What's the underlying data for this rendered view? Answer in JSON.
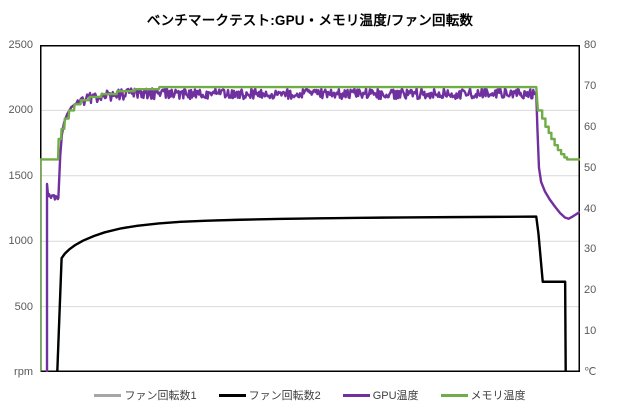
{
  "title": "ベンチマークテスト:GPU・メモリ温度/ファン回転数",
  "colors": {
    "fan1": "#a6a6a6",
    "fan2": "#000000",
    "gpu_temp": "#7030a0",
    "mem_temp": "#70ad47",
    "grid": "#d9d9d9",
    "border": "#000000",
    "axis_text": "#595959",
    "legend_text": "#404040"
  },
  "legend": {
    "items": [
      {
        "id": "fan1",
        "label": "ファン回転数1",
        "color": "#a6a6a6"
      },
      {
        "id": "fan2",
        "label": "ファン回転数2",
        "color": "#000000"
      },
      {
        "id": "gpu-temp",
        "label": "GPU温度",
        "color": "#7030a0"
      },
      {
        "id": "mem-temp",
        "label": "メモリ温度",
        "color": "#70ad47"
      }
    ]
  },
  "chart_data": {
    "type": "line",
    "title": "ベンチマークテスト:GPU・メモリ温度/ファン回転数",
    "x_axis": {
      "label": "",
      "min": 0,
      "max": 100,
      "ticks": [],
      "note_units": "percent of run, no tick labels shown"
    },
    "left_axis": {
      "unit": "rpm",
      "min": 0,
      "max": 2500,
      "ticks": [
        2500,
        2000,
        1500,
        1000,
        500
      ]
    },
    "right_axis": {
      "unit": "℃",
      "min": 0,
      "max": 80,
      "ticks": [
        80,
        70,
        60,
        50,
        40,
        30,
        20,
        10
      ]
    },
    "grid": "horizontal-left-axis-only",
    "legend_position": "bottom",
    "series": [
      {
        "name": "ファン回転数1",
        "id": "fan1",
        "axis": "rpm",
        "color": "#a6a6a6",
        "width": 2.0,
        "note": "identical to ファン回転数2, hidden beneath it",
        "points": [
          [
            0,
            0
          ],
          [
            3.2,
            0
          ],
          [
            4.0,
            870
          ],
          [
            4.6,
            905
          ],
          [
            5.5,
            940
          ],
          [
            6.5,
            970
          ],
          [
            8,
            1005
          ],
          [
            10,
            1040
          ],
          [
            12,
            1068
          ],
          [
            15,
            1098
          ],
          [
            18,
            1118
          ],
          [
            22,
            1136
          ],
          [
            26,
            1148
          ],
          [
            31,
            1157
          ],
          [
            37,
            1164
          ],
          [
            44,
            1170
          ],
          [
            52,
            1175
          ],
          [
            60,
            1179
          ],
          [
            68,
            1182
          ],
          [
            76,
            1184
          ],
          [
            84,
            1186
          ],
          [
            91.9,
            1188
          ],
          [
            92.3,
            1060
          ],
          [
            93.1,
            690
          ],
          [
            97.25,
            690
          ],
          [
            97.35,
            0
          ],
          [
            100,
            0
          ]
        ]
      },
      {
        "name": "ファン回転数2",
        "id": "fan2",
        "axis": "rpm",
        "color": "#000000",
        "width": 2.4,
        "points": [
          [
            0,
            0
          ],
          [
            3.2,
            0
          ],
          [
            4.0,
            870
          ],
          [
            4.6,
            905
          ],
          [
            5.5,
            940
          ],
          [
            6.5,
            970
          ],
          [
            8,
            1005
          ],
          [
            10,
            1040
          ],
          [
            12,
            1068
          ],
          [
            15,
            1098
          ],
          [
            18,
            1118
          ],
          [
            22,
            1136
          ],
          [
            26,
            1148
          ],
          [
            31,
            1157
          ],
          [
            37,
            1164
          ],
          [
            44,
            1170
          ],
          [
            52,
            1175
          ],
          [
            60,
            1179
          ],
          [
            68,
            1182
          ],
          [
            76,
            1184
          ],
          [
            84,
            1186
          ],
          [
            91.9,
            1188
          ],
          [
            92.3,
            1060
          ],
          [
            93.1,
            690
          ],
          [
            97.25,
            690
          ],
          [
            97.35,
            0
          ],
          [
            100,
            0
          ]
        ]
      },
      {
        "name": "GPU温度",
        "id": "gpu-temp",
        "axis": "temp",
        "color": "#7030a0",
        "width": 2.4,
        "points": [
          [
            1.3,
            0
          ],
          [
            1.3,
            46
          ],
          [
            1.5,
            43
          ],
          [
            3.4,
            42.6
          ],
          [
            3.55,
            47
          ],
          [
            3.75,
            53
          ],
          [
            4.05,
            58
          ],
          [
            4.45,
            61
          ],
          [
            5.0,
            63
          ],
          [
            5.8,
            64.8
          ],
          [
            6.8,
            65.8
          ],
          [
            8.0,
            66.5
          ],
          [
            9.5,
            67.1
          ],
          [
            11.5,
            67.5
          ],
          [
            14,
            67.8
          ],
          [
            17,
            68.1
          ],
          [
            91.9,
            68.1
          ],
          [
            92.1,
            60
          ],
          [
            92.4,
            50
          ],
          [
            92.8,
            46.5
          ],
          [
            93.5,
            44.2
          ],
          [
            94.4,
            42.2
          ],
          [
            95.4,
            40.4
          ],
          [
            96.3,
            38.9
          ],
          [
            97.2,
            37.8
          ],
          [
            97.9,
            37.5
          ],
          [
            98.6,
            38.0
          ],
          [
            99.3,
            38.6
          ],
          [
            100,
            39.2
          ]
        ],
        "noise": [
          {
            "from": 1.5,
            "to": 3.4,
            "amp": 0.7,
            "step": 0.18
          },
          {
            "from": 6.8,
            "to": 91.9,
            "amp": 1.3,
            "step": 0.18
          }
        ]
      },
      {
        "name": "メモリ温度",
        "id": "mem-temp",
        "axis": "temp",
        "color": "#70ad47",
        "width": 2.4,
        "points": [
          [
            0,
            0
          ],
          [
            0,
            52
          ],
          [
            3.35,
            52
          ],
          [
            3.45,
            57
          ],
          [
            3.9,
            57
          ],
          [
            4.0,
            59.5
          ],
          [
            4.5,
            59.5
          ],
          [
            4.6,
            62
          ],
          [
            5.3,
            62
          ],
          [
            5.4,
            64
          ],
          [
            6.3,
            64
          ],
          [
            6.4,
            65.5
          ],
          [
            7.5,
            65.5
          ],
          [
            7.6,
            66.5
          ],
          [
            9.1,
            66.5
          ],
          [
            9.2,
            67.3
          ],
          [
            11.3,
            67.3
          ],
          [
            11.4,
            68
          ],
          [
            14.2,
            68
          ],
          [
            14.3,
            68.7
          ],
          [
            17.5,
            68.7
          ],
          [
            17.6,
            69.2
          ],
          [
            22,
            69.2
          ],
          [
            22.1,
            69.7
          ],
          [
            91.9,
            69.7
          ],
          [
            92.2,
            64
          ],
          [
            93.0,
            64
          ],
          [
            93.0,
            62
          ],
          [
            93.6,
            62
          ],
          [
            93.6,
            60
          ],
          [
            94.2,
            60
          ],
          [
            94.2,
            58.5
          ],
          [
            94.7,
            58.5
          ],
          [
            94.7,
            57
          ],
          [
            95.3,
            57
          ],
          [
            95.3,
            55.5
          ],
          [
            95.9,
            55.5
          ],
          [
            95.9,
            54.3
          ],
          [
            96.5,
            54.3
          ],
          [
            96.5,
            53.3
          ],
          [
            97.1,
            53.3
          ],
          [
            97.1,
            52.5
          ],
          [
            97.6,
            52.5
          ],
          [
            97.6,
            52
          ],
          [
            100,
            52
          ]
        ]
      }
    ]
  }
}
